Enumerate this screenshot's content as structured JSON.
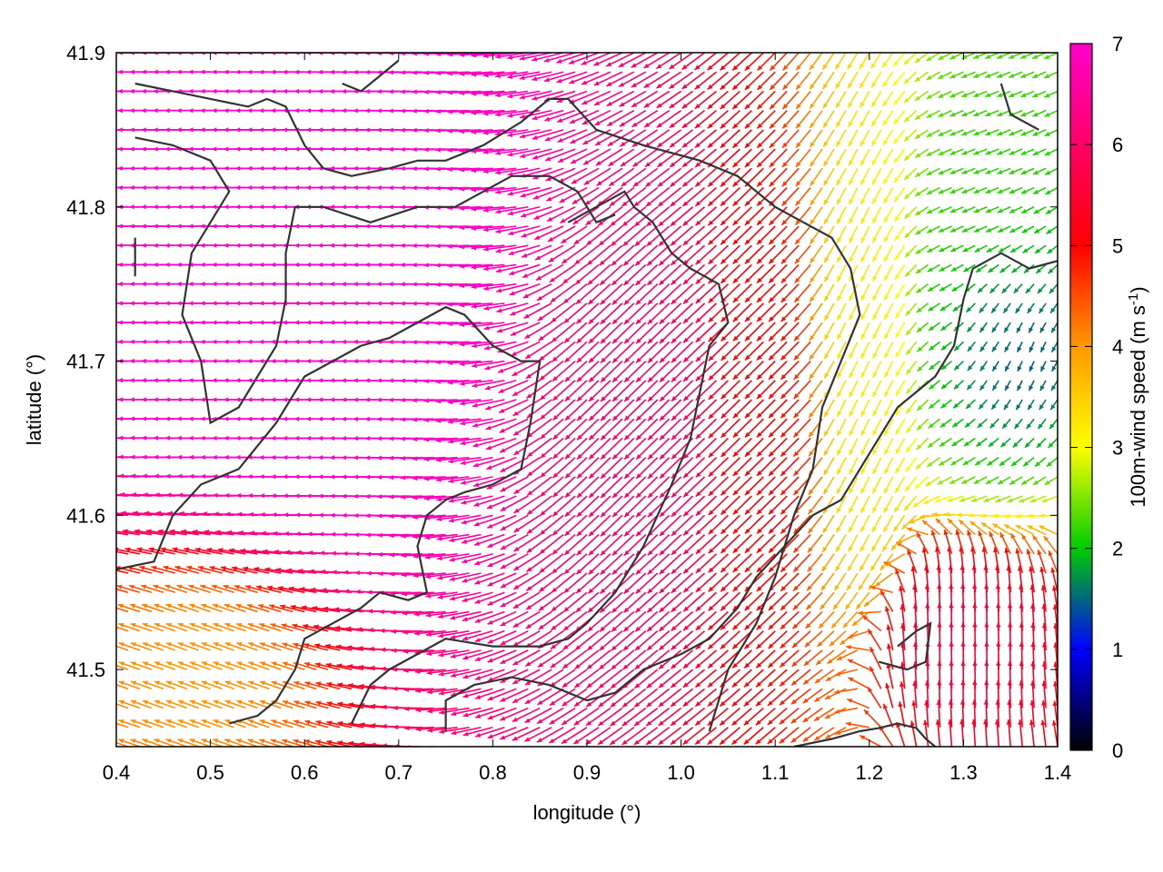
{
  "chart_data": {
    "type": "vector-field",
    "xlabel": "longitude (°)",
    "ylabel": "latitude (°)",
    "xlim": [
      0.4,
      1.4
    ],
    "ylim": [
      41.45,
      41.9
    ],
    "xticks": [
      0.4,
      0.5,
      0.6,
      0.7,
      0.8,
      0.9,
      1.0,
      1.1,
      1.2,
      1.3,
      1.4
    ],
    "xtick_labels": [
      "0.4",
      "0.5",
      "0.6",
      "0.7",
      "0.8",
      "0.9",
      "1.0",
      "1.1",
      "1.2",
      "1.3",
      "1.4"
    ],
    "yticks": [
      41.5,
      41.6,
      41.7,
      41.8,
      41.9
    ],
    "ytick_labels": [
      "41.5",
      "41.6",
      "41.7",
      "41.8",
      "41.9"
    ],
    "colorbar": {
      "label": "100m-wind speed",
      "unit_main": " (m s",
      "unit_sup": "-1",
      "unit_end": ")",
      "range": [
        0,
        7
      ],
      "ticks": [
        0,
        1,
        2,
        3,
        4,
        5,
        6,
        7
      ],
      "tick_labels": [
        "0",
        "1",
        "2",
        "3",
        "4",
        "5",
        "6",
        "7"
      ],
      "palette": [
        "#000000",
        "#0000ff",
        "#00cc00",
        "#ffff00",
        "#ff9900",
        "#ff0000",
        "#ff00cc"
      ]
    },
    "grid": false,
    "legend": "none",
    "field_samples": {
      "lon_step": 0.0125,
      "lat_step": 0.0125,
      "regions": [
        {
          "lon": [
            0.4,
            0.85
          ],
          "lat": [
            41.6,
            41.9
          ],
          "speed": 7.0,
          "direction_deg": 180
        },
        {
          "lon": [
            0.85,
            1.05
          ],
          "lat": [
            41.55,
            41.8
          ],
          "speed": 6.0,
          "direction_deg": 225
        },
        {
          "lon": [
            1.05,
            1.15
          ],
          "lat": [
            41.5,
            41.85
          ],
          "speed": 5.0,
          "direction_deg": 225
        },
        {
          "lon": [
            1.15,
            1.25
          ],
          "lat": [
            41.5,
            41.9
          ],
          "speed": 3.2,
          "direction_deg": 245
        },
        {
          "lon": [
            1.25,
            1.4
          ],
          "lat": [
            41.6,
            41.9
          ],
          "speed": 2.2,
          "direction_deg": 200
        },
        {
          "lon": [
            1.28,
            1.4
          ],
          "lat": [
            41.65,
            41.78
          ],
          "speed": 1.0,
          "direction_deg": 270
        },
        {
          "lon": [
            0.4,
            0.6
          ],
          "lat": [
            41.45,
            41.55
          ],
          "speed": 4.0,
          "direction_deg": 160
        },
        {
          "lon": [
            1.2,
            1.4
          ],
          "lat": [
            41.45,
            41.58
          ],
          "speed": 5.6,
          "direction_deg": 90
        }
      ]
    },
    "contours": [
      [
        [
          0.42,
          41.88
        ],
        [
          0.46,
          41.875
        ],
        [
          0.5,
          41.87
        ],
        [
          0.54,
          41.865
        ],
        [
          0.56,
          41.87
        ],
        [
          0.58,
          41.865
        ],
        [
          0.6,
          41.84
        ],
        [
          0.62,
          41.825
        ],
        [
          0.65,
          41.82
        ],
        [
          0.69,
          41.825
        ],
        [
          0.72,
          41.83
        ],
        [
          0.75,
          41.83
        ],
        [
          0.79,
          41.84
        ],
        [
          0.83,
          41.855
        ],
        [
          0.86,
          41.87
        ],
        [
          0.88,
          41.87
        ],
        [
          0.91,
          41.85
        ],
        [
          0.96,
          41.84
        ],
        [
          1.02,
          41.83
        ],
        [
          1.06,
          41.82
        ],
        [
          1.1,
          41.8
        ],
        [
          1.13,
          41.79
        ],
        [
          1.16,
          41.78
        ],
        [
          1.18,
          41.76
        ],
        [
          1.19,
          41.73
        ],
        [
          1.17,
          41.7
        ],
        [
          1.15,
          41.67
        ],
        [
          1.14,
          41.63
        ],
        [
          1.12,
          41.6
        ],
        [
          1.1,
          41.56
        ],
        [
          1.08,
          41.53
        ],
        [
          1.05,
          41.5
        ],
        [
          1.03,
          41.46
        ]
      ],
      [
        [
          0.42,
          41.845
        ],
        [
          0.46,
          41.84
        ],
        [
          0.5,
          41.83
        ],
        [
          0.52,
          41.81
        ],
        [
          0.5,
          41.79
        ],
        [
          0.48,
          41.77
        ],
        [
          0.47,
          41.73
        ],
        [
          0.49,
          41.7
        ],
        [
          0.5,
          41.66
        ],
        [
          0.53,
          41.67
        ],
        [
          0.55,
          41.69
        ],
        [
          0.57,
          41.71
        ],
        [
          0.58,
          41.74
        ],
        [
          0.58,
          41.77
        ],
        [
          0.59,
          41.8
        ],
        [
          0.62,
          41.8
        ],
        [
          0.67,
          41.79
        ],
        [
          0.72,
          41.8
        ],
        [
          0.76,
          41.8
        ],
        [
          0.79,
          41.81
        ],
        [
          0.82,
          41.82
        ],
        [
          0.86,
          41.82
        ],
        [
          0.89,
          41.81
        ],
        [
          0.91,
          41.79
        ],
        [
          0.93,
          41.795
        ]
      ],
      [
        [
          0.4,
          41.565
        ],
        [
          0.44,
          41.57
        ],
        [
          0.46,
          41.6
        ],
        [
          0.49,
          41.62
        ],
        [
          0.53,
          41.63
        ],
        [
          0.57,
          41.66
        ],
        [
          0.6,
          41.69
        ],
        [
          0.63,
          41.7
        ],
        [
          0.66,
          41.71
        ],
        [
          0.69,
          41.715
        ],
        [
          0.72,
          41.725
        ],
        [
          0.75,
          41.735
        ],
        [
          0.77,
          41.73
        ],
        [
          0.8,
          41.71
        ],
        [
          0.83,
          41.7
        ],
        [
          0.85,
          41.7
        ],
        [
          0.84,
          41.66
        ],
        [
          0.83,
          41.63
        ],
        [
          0.8,
          41.62
        ],
        [
          0.77,
          41.615
        ],
        [
          0.75,
          41.61
        ],
        [
          0.73,
          41.6
        ],
        [
          0.72,
          41.58
        ],
        [
          0.73,
          41.55
        ],
        [
          0.71,
          41.545
        ],
        [
          0.68,
          41.55
        ],
        [
          0.66,
          41.54
        ],
        [
          0.63,
          41.53
        ],
        [
          0.6,
          41.52
        ],
        [
          0.59,
          41.5
        ],
        [
          0.57,
          41.48
        ],
        [
          0.55,
          41.47
        ],
        [
          0.52,
          41.465
        ]
      ],
      [
        [
          0.65,
          41.465
        ],
        [
          0.67,
          41.49
        ],
        [
          0.69,
          41.5
        ],
        [
          0.72,
          41.51
        ],
        [
          0.75,
          41.52
        ],
        [
          0.8,
          41.515
        ],
        [
          0.85,
          41.515
        ],
        [
          0.88,
          41.52
        ],
        [
          0.9,
          41.53
        ],
        [
          0.93,
          41.55
        ],
        [
          0.96,
          41.58
        ],
        [
          0.99,
          41.62
        ],
        [
          1.01,
          41.65
        ],
        [
          1.02,
          41.68
        ],
        [
          1.03,
          41.71
        ],
        [
          1.05,
          41.725
        ],
        [
          1.04,
          41.75
        ],
        [
          1.01,
          41.76
        ],
        [
          0.99,
          41.77
        ],
        [
          0.97,
          41.79
        ],
        [
          0.95,
          41.8
        ],
        [
          0.94,
          41.81
        ],
        [
          0.91,
          41.8
        ],
        [
          0.88,
          41.79
        ]
      ],
      [
        [
          0.75,
          41.46
        ],
        [
          0.75,
          41.48
        ],
        [
          0.78,
          41.49
        ],
        [
          0.82,
          41.495
        ],
        [
          0.86,
          41.49
        ],
        [
          0.9,
          41.48
        ],
        [
          0.93,
          41.485
        ],
        [
          0.96,
          41.5
        ],
        [
          1.0,
          41.51
        ],
        [
          1.03,
          41.52
        ],
        [
          1.06,
          41.54
        ],
        [
          1.08,
          41.56
        ],
        [
          1.11,
          41.58
        ],
        [
          1.14,
          41.6
        ],
        [
          1.17,
          41.61
        ],
        [
          1.19,
          41.63
        ],
        [
          1.21,
          41.65
        ],
        [
          1.23,
          41.67
        ],
        [
          1.25,
          41.68
        ],
        [
          1.27,
          41.69
        ],
        [
          1.29,
          41.71
        ],
        [
          1.3,
          41.74
        ],
        [
          1.31,
          41.76
        ],
        [
          1.34,
          41.77
        ],
        [
          1.37,
          41.76
        ],
        [
          1.4,
          41.765
        ]
      ],
      [
        [
          1.12,
          41.45
        ],
        [
          1.16,
          41.455
        ],
        [
          1.19,
          41.46
        ],
        [
          1.21,
          41.462
        ],
        [
          1.23,
          41.465
        ],
        [
          1.25,
          41.462
        ],
        [
          1.26,
          41.455
        ],
        [
          1.27,
          41.45
        ]
      ],
      [
        [
          1.21,
          41.505
        ],
        [
          1.24,
          41.5
        ],
        [
          1.26,
          41.505
        ],
        [
          1.265,
          41.53
        ],
        [
          1.25,
          41.525
        ],
        [
          1.23,
          41.515
        ]
      ],
      [
        [
          0.64,
          41.88
        ],
        [
          0.66,
          41.875
        ],
        [
          0.68,
          41.885
        ],
        [
          0.7,
          41.895
        ]
      ],
      [
        [
          1.34,
          41.88
        ],
        [
          1.35,
          41.86
        ],
        [
          1.38,
          41.85
        ]
      ],
      [
        [
          0.42,
          41.78
        ],
        [
          0.42,
          41.755
        ]
      ]
    ]
  }
}
